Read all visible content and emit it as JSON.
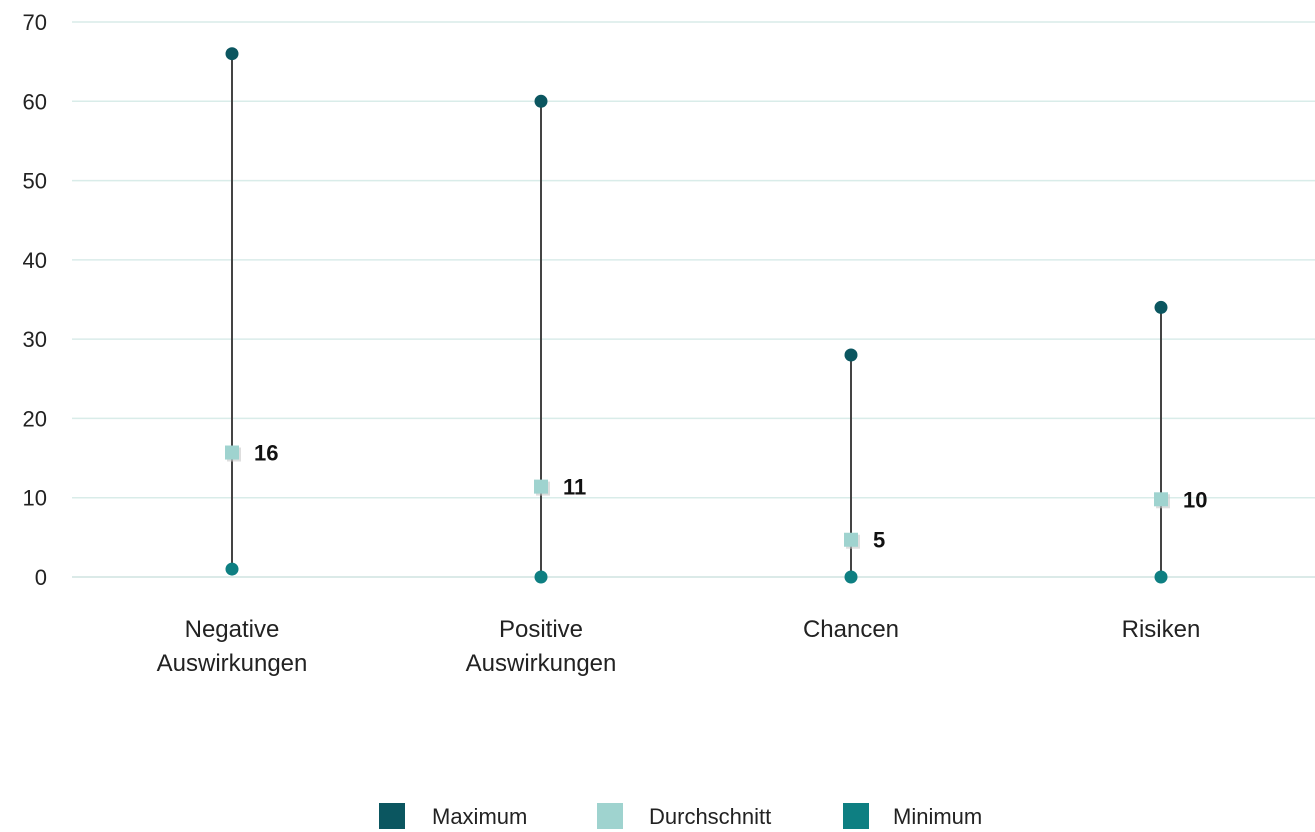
{
  "chart_data": {
    "type": "dot-range",
    "categories": [
      [
        "Negative",
        "Auswirkungen"
      ],
      [
        "Positive",
        "Auswirkungen"
      ],
      [
        "Chancen"
      ],
      [
        "Risiken"
      ]
    ],
    "series": [
      {
        "name": "Maximum",
        "values": [
          66,
          60,
          28,
          34
        ],
        "color": "#0b5660"
      },
      {
        "name": "Durchschnitt",
        "values": [
          15.7,
          11.4,
          4.7,
          9.8
        ],
        "data_labels": [
          "16",
          "11",
          "5",
          "10"
        ],
        "color": "#9fd3cf"
      },
      {
        "name": "Minimum",
        "values": [
          1,
          0,
          0,
          0
        ],
        "color": "#0e7f82"
      }
    ],
    "ylim": [
      0,
      70
    ],
    "yticks": [
      0,
      10,
      20,
      30,
      40,
      50,
      60,
      70
    ],
    "grid": true,
    "legend_position": "bottom",
    "colors": {
      "gridline": "#d9ece9",
      "range_line": "#444444"
    }
  }
}
